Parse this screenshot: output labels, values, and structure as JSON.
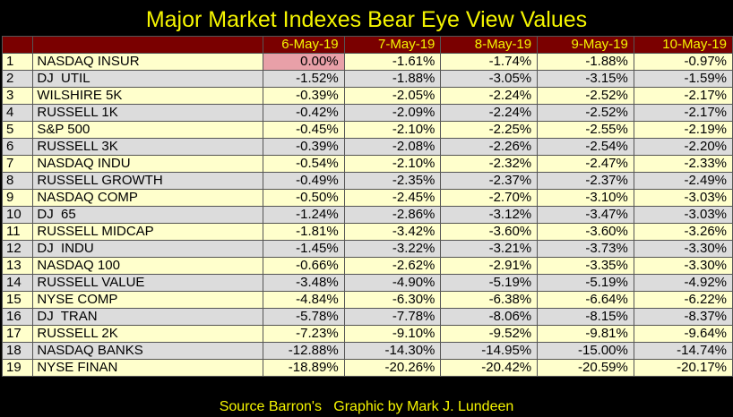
{
  "title": "Major Market Indexes Bear Eye View Values",
  "footer": "Source Barron's   Graphic by Mark J. Lundeen",
  "colors": {
    "header_bg": "#7a0000",
    "header_text": "#f5f500",
    "odd_row": "#ffffcc",
    "even_row": "#dcdcdc",
    "highlight": "#e8a0a8"
  },
  "chart_data": {
    "type": "table",
    "columns": [
      "6-May-19",
      "7-May-19",
      "8-May-19",
      "9-May-19",
      "10-May-19"
    ],
    "rows": [
      {
        "rank": "1",
        "name": "NASDAQ INSUR",
        "values": [
          "0.00%",
          "-1.61%",
          "-1.74%",
          "-1.88%",
          "-0.97%"
        ]
      },
      {
        "rank": "2",
        "name": "DJ  UTIL",
        "values": [
          "-1.52%",
          "-1.88%",
          "-3.05%",
          "-3.15%",
          "-1.59%"
        ]
      },
      {
        "rank": "3",
        "name": "WILSHIRE 5K",
        "values": [
          "-0.39%",
          "-2.05%",
          "-2.24%",
          "-2.52%",
          "-2.17%"
        ]
      },
      {
        "rank": "4",
        "name": "RUSSELL 1K",
        "values": [
          "-0.42%",
          "-2.09%",
          "-2.24%",
          "-2.52%",
          "-2.17%"
        ]
      },
      {
        "rank": "5",
        "name": "S&P 500",
        "values": [
          "-0.45%",
          "-2.10%",
          "-2.25%",
          "-2.55%",
          "-2.19%"
        ]
      },
      {
        "rank": "6",
        "name": "RUSSELL 3K",
        "values": [
          "-0.39%",
          "-2.08%",
          "-2.26%",
          "-2.54%",
          "-2.20%"
        ]
      },
      {
        "rank": "7",
        "name": "NASDAQ INDU",
        "values": [
          "-0.54%",
          "-2.10%",
          "-2.32%",
          "-2.47%",
          "-2.33%"
        ]
      },
      {
        "rank": "8",
        "name": "RUSSELL GROWTH",
        "values": [
          "-0.49%",
          "-2.35%",
          "-2.37%",
          "-2.37%",
          "-2.49%"
        ]
      },
      {
        "rank": "9",
        "name": "NASDAQ COMP",
        "values": [
          "-0.50%",
          "-2.45%",
          "-2.70%",
          "-3.10%",
          "-3.03%"
        ]
      },
      {
        "rank": "10",
        "name": "DJ  65",
        "values": [
          "-1.24%",
          "-2.86%",
          "-3.12%",
          "-3.47%",
          "-3.03%"
        ]
      },
      {
        "rank": "11",
        "name": "RUSSELL MIDCAP",
        "values": [
          "-1.81%",
          "-3.42%",
          "-3.60%",
          "-3.60%",
          "-3.26%"
        ]
      },
      {
        "rank": "12",
        "name": "DJ  INDU",
        "values": [
          "-1.45%",
          "-3.22%",
          "-3.21%",
          "-3.73%",
          "-3.30%"
        ]
      },
      {
        "rank": "13",
        "name": "NASDAQ 100",
        "values": [
          "-0.66%",
          "-2.62%",
          "-2.91%",
          "-3.35%",
          "-3.30%"
        ]
      },
      {
        "rank": "14",
        "name": "RUSSELL VALUE",
        "values": [
          "-3.48%",
          "-4.90%",
          "-5.19%",
          "-5.19%",
          "-4.92%"
        ]
      },
      {
        "rank": "15",
        "name": "NYSE COMP",
        "values": [
          "-4.84%",
          "-6.30%",
          "-6.38%",
          "-6.64%",
          "-6.22%"
        ]
      },
      {
        "rank": "16",
        "name": "DJ  TRAN",
        "values": [
          "-5.78%",
          "-7.78%",
          "-8.06%",
          "-8.15%",
          "-8.37%"
        ]
      },
      {
        "rank": "17",
        "name": "RUSSELL 2K",
        "values": [
          "-7.23%",
          "-9.10%",
          "-9.52%",
          "-9.81%",
          "-9.64%"
        ]
      },
      {
        "rank": "18",
        "name": "NASDAQ BANKS",
        "values": [
          "-12.88%",
          "-14.30%",
          "-14.95%",
          "-15.00%",
          "-14.74%"
        ]
      },
      {
        "rank": "19",
        "name": "NYSE FINAN",
        "values": [
          "-18.89%",
          "-20.26%",
          "-20.42%",
          "-20.59%",
          "-20.17%"
        ]
      }
    ]
  }
}
